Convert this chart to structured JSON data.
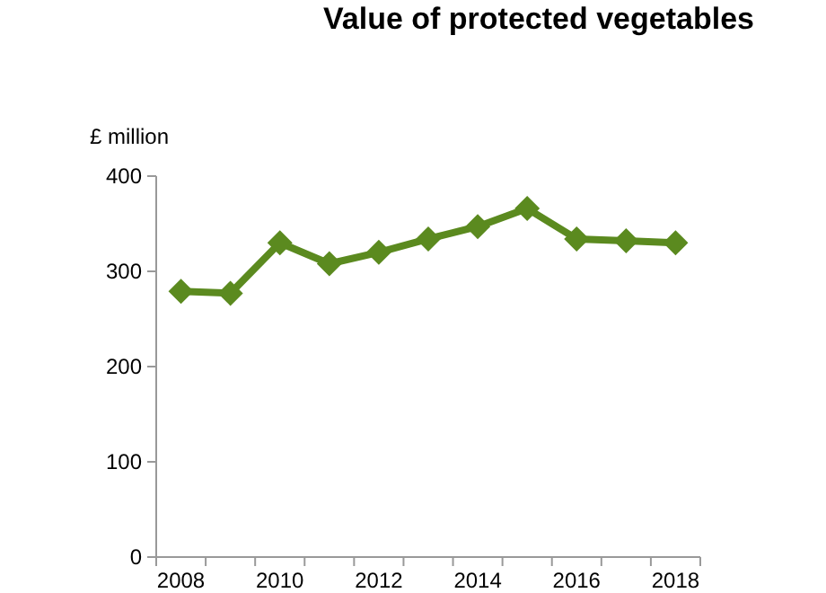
{
  "chart_data": {
    "type": "line",
    "title": "Value of protected vegetables",
    "ylabel": "£ million",
    "categories": [
      "2008",
      null,
      "2010",
      null,
      "2012",
      null,
      "2014",
      null,
      "2016",
      null,
      "2018"
    ],
    "series": [
      {
        "color": "#5b8a1f",
        "values": [
          279,
          277,
          330,
          308,
          320,
          334,
          347,
          366,
          334,
          332,
          330
        ]
      }
    ],
    "ylim": [
      0,
      400
    ],
    "yticks": [
      0,
      100,
      200,
      300,
      400
    ],
    "grid": false,
    "marker": "diamond",
    "line_style": "solid"
  }
}
